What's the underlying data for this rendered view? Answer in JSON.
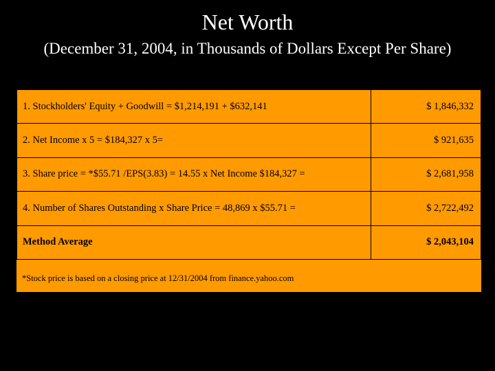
{
  "slide": {
    "title": "Net Worth",
    "subtitle": "(December 31, 2004, in Thousands of Dollars Except Per Share)"
  },
  "table": {
    "rows": [
      {
        "label": "1. Stockholders' Equity + Goodwill = $1,214,191 + $632,141",
        "value": "$ 1,846,332"
      },
      {
        "label": "2. Net Income x 5 = $184,327 x 5=",
        "value": "$ 921,635"
      },
      {
        "label": "3. Share price = *$55.71 /EPS(3.83) = 14.55 x Net Income $184,327 =",
        "value": "$ 2,681,958"
      },
      {
        "label": "4. Number of Shares Outstanding x Share Price = 48,869 x $55.71 =",
        "value": "$ 2,722,492"
      },
      {
        "label": "Method Average",
        "value": "$ 2,043,104"
      }
    ]
  },
  "footnote": "*Stock price is based on a closing price at 12/31/2004 from finance.yahoo.com",
  "colors": {
    "background": "#000000",
    "panel": "#ff9a00",
    "title_text": "#ffffff"
  }
}
